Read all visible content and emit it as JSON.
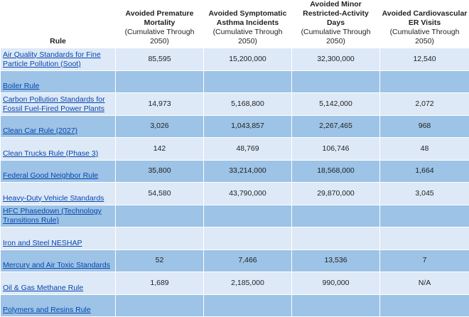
{
  "headers": {
    "rule": "Rule",
    "mortality": {
      "title": "Avoided Premature Mortality",
      "sub": "(Cumulative Through 2050)"
    },
    "asthma": {
      "title": "Avoided Symptomatic Asthma Incidents",
      "sub": "(Cumulative Through 2050)"
    },
    "activity_days": {
      "title": "Avoided Minor Restricted-Activity Days",
      "sub": "(Cumulative Through 2050)"
    },
    "er_visits": {
      "title": "Avoided Cardiovascular ER Visits",
      "sub": "(Cumulative Through 2050)"
    }
  },
  "rows": [
    {
      "rule": "Air Quality Standards for Fine Particle Pollution (Soot)",
      "mortality": "85,595",
      "asthma": "15,200,000",
      "activity_days": "32,300,000",
      "er_visits": "12,540"
    },
    {
      "rule": "Boiler Rule",
      "mortality": "",
      "asthma": "",
      "activity_days": "",
      "er_visits": ""
    },
    {
      "rule": "Carbon Pollution Standards for Fossil Fuel-Fired Power Plants",
      "mortality": "14,973",
      "asthma": "5,168,800",
      "activity_days": "5,142,000",
      "er_visits": "2,072"
    },
    {
      "rule": "Clean Car Rule (2027)",
      "mortality": "3,026",
      "asthma": "1,043,857",
      "activity_days": "2,267,465",
      "er_visits": "968"
    },
    {
      "rule": "Clean Trucks Rule (Phase 3)",
      "mortality": "142",
      "asthma": "48,769",
      "activity_days": "106,746",
      "er_visits": "48"
    },
    {
      "rule": "Federal Good Neighbor Rule",
      "mortality": "35,800",
      "asthma": "33,214,000",
      "activity_days": "18,568,000",
      "er_visits": "1,664"
    },
    {
      "rule": "Heavy-Duty Vehicle Standards",
      "mortality": "54,580",
      "asthma": "43,790,000",
      "activity_days": "29,870,000",
      "er_visits": "3,045"
    },
    {
      "rule": "HFC Phasedown (Technology Transitions Rule)",
      "mortality": "",
      "asthma": "",
      "activity_days": "",
      "er_visits": ""
    },
    {
      "rule": "Iron and Steel NESHAP",
      "mortality": "",
      "asthma": "",
      "activity_days": "",
      "er_visits": ""
    },
    {
      "rule": "Mercury and Air Toxic Standards",
      "mortality": "52",
      "asthma": "7,466",
      "activity_days": "13,536",
      "er_visits": "7"
    },
    {
      "rule": "Oil & Gas Methane Rule",
      "mortality": "1,689",
      "asthma": "2,185,000",
      "activity_days": "990,000",
      "er_visits": "N/A"
    },
    {
      "rule": "Polymers and Resins Rule",
      "mortality": "",
      "asthma": "",
      "activity_days": "",
      "er_visits": ""
    }
  ]
}
